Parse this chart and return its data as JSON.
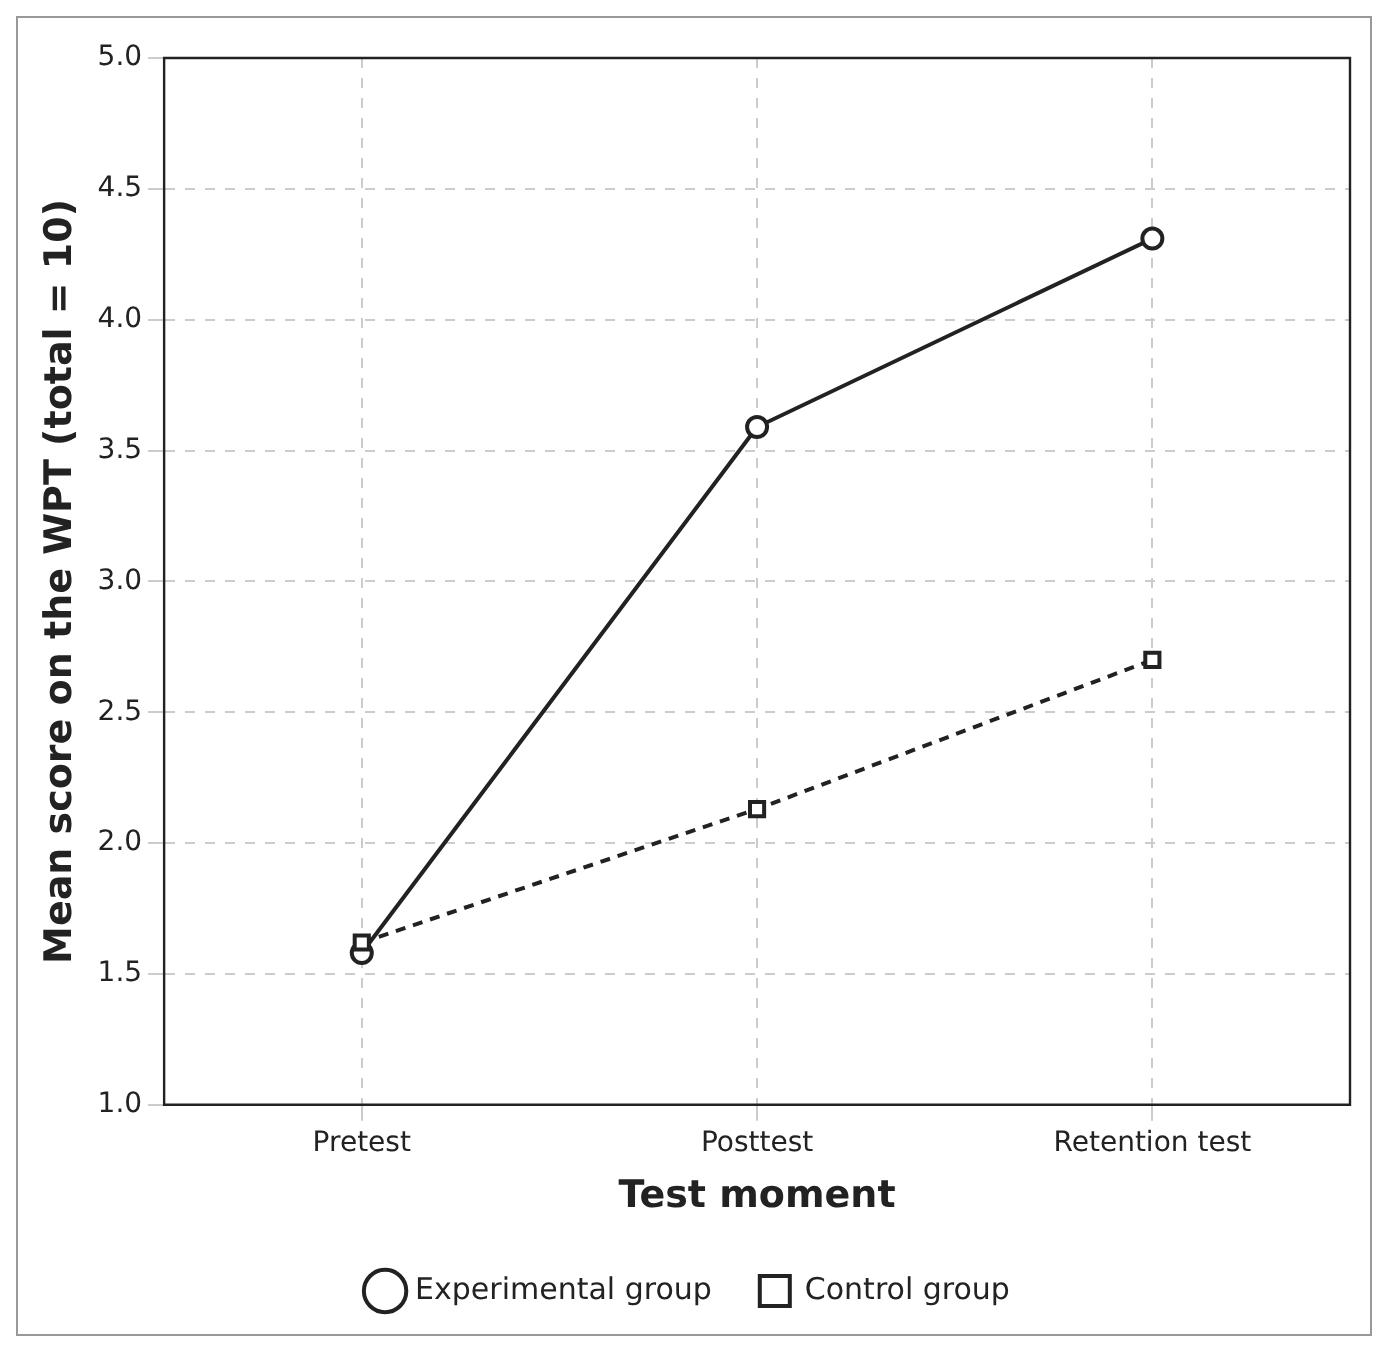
{
  "chart_data": {
    "type": "line",
    "xlabel": "Test moment",
    "ylabel": "Mean score on the WPT (total = 10)",
    "categories": [
      "Pretest",
      "Posttest",
      "Retention test"
    ],
    "series": [
      {
        "name": "Experimental group",
        "color": "#222222",
        "values": [
          1.58,
          3.59,
          4.31
        ],
        "marker": "circle",
        "line_style": "solid"
      },
      {
        "name": "Control group",
        "color": "#222222",
        "values": [
          1.62,
          2.13,
          2.7
        ],
        "marker": "square",
        "line_style": "dashed"
      }
    ],
    "ylim": [
      1.0,
      5.0
    ],
    "yticks": [
      {
        "value": 1.0,
        "label": "1.0"
      },
      {
        "value": 1.5,
        "label": "1.5"
      },
      {
        "value": 2.0,
        "label": "2.0"
      },
      {
        "value": 2.5,
        "label": "2.5"
      },
      {
        "value": 3.0,
        "label": "3.0"
      },
      {
        "value": 3.5,
        "label": "3.5"
      },
      {
        "value": 4.0,
        "label": "4.0"
      },
      {
        "value": 4.5,
        "label": "4.5"
      },
      {
        "value": 5.0,
        "label": "5.0"
      }
    ],
    "grid": true,
    "legend": "bottom"
  }
}
